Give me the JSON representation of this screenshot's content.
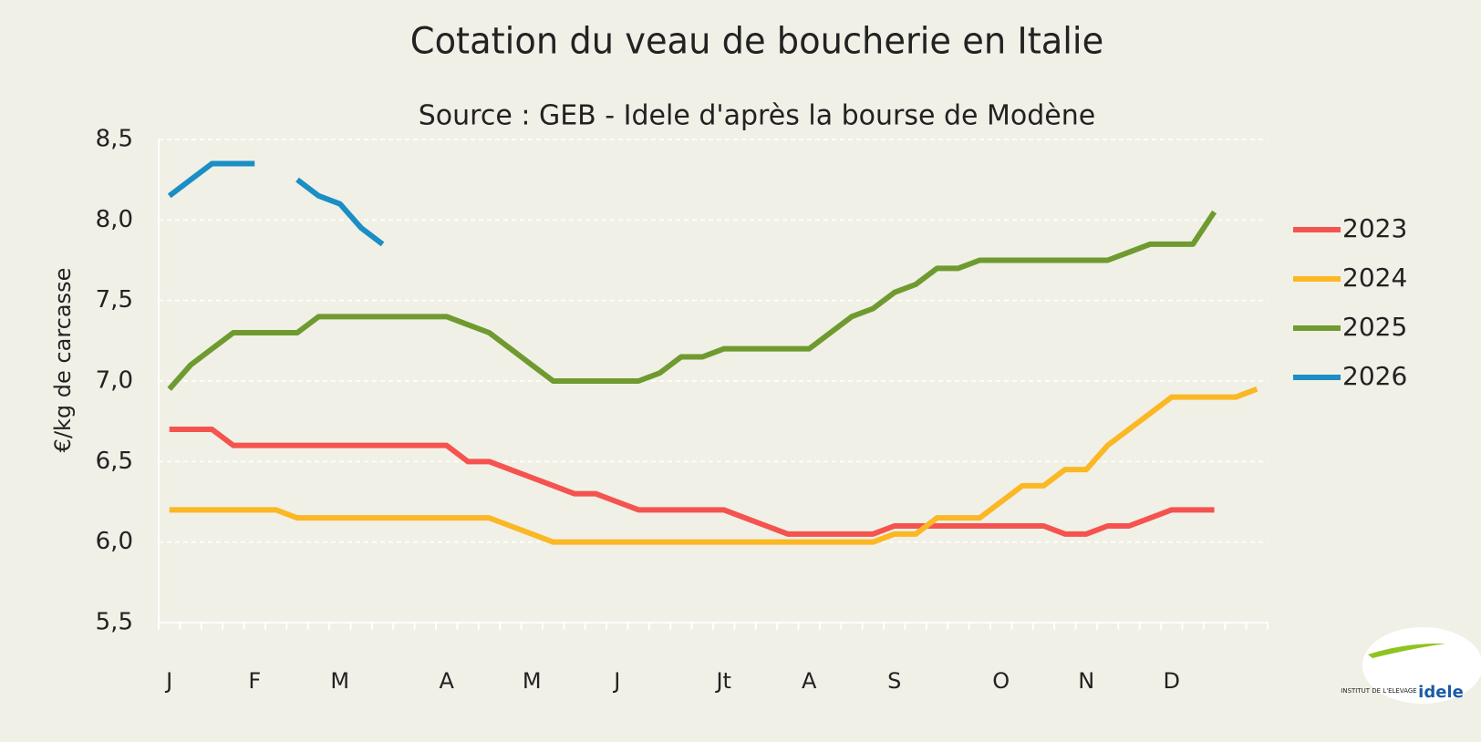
{
  "chart_data": {
    "type": "line",
    "title": "Cotation du veau de boucherie en Italie",
    "subtitle": "Source : GEB - Idele d'après la bourse de Modène",
    "y_label": "€/kg de carcasse",
    "logo": {
      "small": "INSTITUT DE L'ELEVAGE",
      "name": "idele"
    },
    "categories": [
      "J",
      null,
      null,
      null,
      "F",
      null,
      null,
      null,
      "M",
      null,
      null,
      null,
      null,
      "A",
      null,
      null,
      null,
      "M",
      null,
      null,
      null,
      "J",
      null,
      null,
      null,
      null,
      "Jt",
      null,
      null,
      null,
      "A",
      null,
      null,
      null,
      "S",
      null,
      null,
      null,
      null,
      "O",
      null,
      null,
      null,
      "N",
      null,
      null,
      null,
      "D",
      null,
      null,
      null,
      null
    ],
    "ylim": [
      5.5,
      8.5
    ],
    "yticks": [
      {
        "value": 5.5,
        "label": "5,5"
      },
      {
        "value": 6,
        "label": "6,0"
      },
      {
        "value": 6.5,
        "label": "6,5"
      },
      {
        "value": 7,
        "label": "7,0"
      },
      {
        "value": 7.5,
        "label": "7,5"
      },
      {
        "value": 8,
        "label": "8,0"
      },
      {
        "value": 8.5,
        "label": "8,5"
      }
    ],
    "grid": true,
    "legend": "right",
    "series": [
      {
        "name": "2023",
        "color": "#f5534f",
        "values": [
          6.7,
          6.7,
          6.7,
          6.6,
          6.6,
          6.6,
          6.6,
          6.6,
          6.6,
          6.6,
          6.6,
          6.6,
          6.6,
          6.6,
          6.5,
          6.5,
          6.45,
          6.4,
          6.35,
          6.3,
          6.3,
          6.25,
          6.2,
          6.2,
          6.2,
          6.2,
          6.2,
          6.15,
          6.1,
          6.05,
          6.05,
          6.05,
          6.05,
          6.05,
          6.1,
          6.1,
          6.1,
          6.1,
          6.1,
          6.1,
          6.1,
          6.1,
          6.05,
          6.05,
          6.1,
          6.1,
          6.15,
          6.2,
          6.2,
          6.2,
          null,
          null
        ]
      },
      {
        "name": "2024",
        "color": "#fbb724",
        "values": [
          6.2,
          6.2,
          6.2,
          6.2,
          6.2,
          6.2,
          6.15,
          6.15,
          6.15,
          6.15,
          6.15,
          6.15,
          6.15,
          6.15,
          6.15,
          6.15,
          6.1,
          6.05,
          6.0,
          6.0,
          6.0,
          6.0,
          6.0,
          6.0,
          6.0,
          6.0,
          6.0,
          6.0,
          6.0,
          6.0,
          6.0,
          6.0,
          6.0,
          6.0,
          6.05,
          6.05,
          6.15,
          6.15,
          6.15,
          6.25,
          6.35,
          6.35,
          6.45,
          6.45,
          6.6,
          6.7,
          6.8,
          6.9,
          6.9,
          6.9,
          6.9,
          6.95
        ]
      },
      {
        "name": "2025",
        "color": "#6f9a2f",
        "values": [
          6.95,
          7.1,
          7.2,
          7.3,
          7.3,
          7.3,
          7.3,
          7.4,
          7.4,
          7.4,
          7.4,
          7.4,
          7.4,
          7.4,
          7.35,
          7.3,
          7.2,
          7.1,
          7.0,
          7.0,
          7.0,
          7.0,
          7.0,
          7.05,
          7.15,
          7.15,
          7.2,
          7.2,
          7.2,
          7.2,
          7.2,
          7.3,
          7.4,
          7.45,
          7.55,
          7.6,
          7.7,
          7.7,
          7.75,
          7.75,
          7.75,
          7.75,
          7.75,
          7.75,
          7.75,
          7.8,
          7.85,
          7.85,
          7.85,
          8.05,
          null,
          null
        ]
      },
      {
        "name": "2026",
        "color": "#1a8ec5",
        "values": [
          8.15,
          8.25,
          8.35,
          8.35,
          8.35,
          null,
          8.25,
          8.15,
          8.1,
          7.95,
          7.85,
          null,
          null,
          null,
          null,
          null,
          null,
          null,
          null,
          null,
          null,
          null,
          null,
          null,
          null,
          null,
          null,
          null,
          null,
          null,
          null,
          null,
          null,
          null,
          null,
          null,
          null,
          null,
          null,
          null,
          null,
          null,
          null,
          null,
          null,
          null,
          null,
          null,
          null,
          null,
          null,
          null
        ]
      }
    ]
  }
}
